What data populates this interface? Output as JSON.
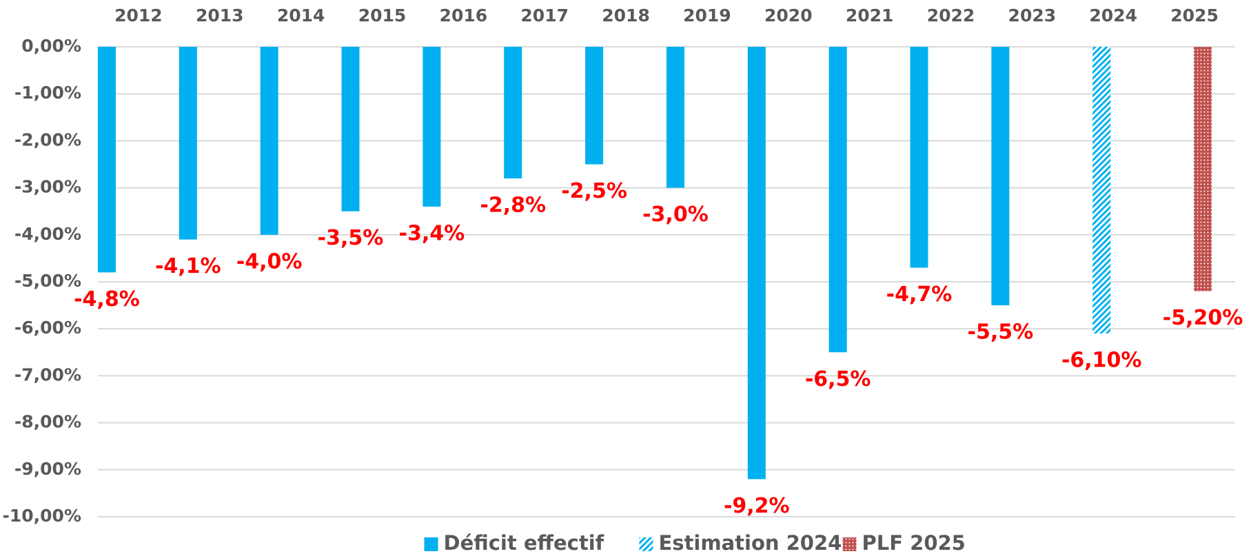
{
  "chart_data": {
    "type": "bar",
    "categories": [
      "2012",
      "2013",
      "2014",
      "2015",
      "2016",
      "2017",
      "2018",
      "2019",
      "2020",
      "2021",
      "2022",
      "2023",
      "2024",
      "2025"
    ],
    "series": [
      {
        "name": "Déficit effectif",
        "color": "#00b0f0",
        "pattern": "solid",
        "values": [
          -4.8,
          -4.1,
          -4.0,
          -3.5,
          -3.4,
          -2.8,
          -2.5,
          -3.0,
          -9.2,
          -6.5,
          -4.7,
          -5.5,
          null,
          null
        ],
        "value_labels": [
          "-4,8%",
          "-4,1%",
          "-4,0%",
          "-3,5%",
          "-3,4%",
          "-2,8%",
          "-2,5%",
          "-3,0%",
          "-9,2%",
          "-6,5%",
          "-4,7%",
          "-5,5%",
          null,
          null
        ]
      },
      {
        "name": "Estimation 2024",
        "color": "#00b0f0",
        "pattern": "hatch",
        "values": [
          null,
          null,
          null,
          null,
          null,
          null,
          null,
          null,
          null,
          null,
          null,
          null,
          -6.1,
          null
        ],
        "value_labels": [
          null,
          null,
          null,
          null,
          null,
          null,
          null,
          null,
          null,
          null,
          null,
          null,
          "-6,10%",
          null
        ]
      },
      {
        "name": "PLF 2025",
        "color": "#c0504d",
        "pattern": "dots",
        "values": [
          null,
          null,
          null,
          null,
          null,
          null,
          null,
          null,
          null,
          null,
          null,
          null,
          null,
          -5.2
        ],
        "value_labels": [
          null,
          null,
          null,
          null,
          null,
          null,
          null,
          null,
          null,
          null,
          null,
          null,
          null,
          "-5,20%"
        ]
      }
    ],
    "ylim": [
      -10,
      0
    ],
    "yticks": [
      {
        "value": 0,
        "label": "0,00%"
      },
      {
        "value": -1,
        "label": "-1,00%"
      },
      {
        "value": -2,
        "label": "-2,00%"
      },
      {
        "value": -3,
        "label": "-3,00%"
      },
      {
        "value": -4,
        "label": "-4,00%"
      },
      {
        "value": -5,
        "label": "-5,00%"
      },
      {
        "value": -6,
        "label": "-6,00%"
      },
      {
        "value": -7,
        "label": "-7,00%"
      },
      {
        "value": -8,
        "label": "-8,00%"
      },
      {
        "value": -9,
        "label": "-9,00%"
      },
      {
        "value": -10,
        "label": "-10,00%"
      }
    ],
    "grid": true,
    "category_axis": "top",
    "legend": "bottom",
    "value_label_color": "#ff0000"
  }
}
